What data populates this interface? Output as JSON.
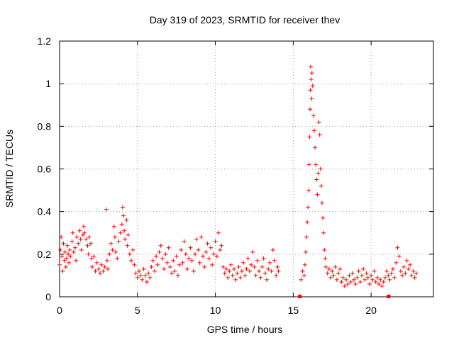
{
  "chart_data": {
    "type": "scatter",
    "title": "Day 319 of 2023, SRMTID for receiver thev",
    "xlabel": "GPS time / hours",
    "ylabel": "SRMTID / TECUs",
    "xlim": [
      0,
      24
    ],
    "ylim": [
      0,
      1.2
    ],
    "xticks": [
      0,
      5,
      10,
      15,
      20
    ],
    "xtick_labels": [
      "0",
      "5",
      "10",
      "15",
      "20"
    ],
    "yticks": [
      0,
      0.2,
      0.4,
      0.6,
      0.8,
      1.0,
      1.2
    ],
    "ytick_labels": [
      "0",
      "0.2",
      "0.4",
      "0.6",
      "0.8",
      "1",
      "1.2"
    ],
    "grid": true,
    "marker": "+",
    "color": "#ff0000",
    "series": [
      {
        "name": "SRMTID",
        "points": [
          [
            0.0,
            0.15
          ],
          [
            0.05,
            0.22
          ],
          [
            0.1,
            0.28
          ],
          [
            0.15,
            0.19
          ],
          [
            0.2,
            0.12
          ],
          [
            0.25,
            0.25
          ],
          [
            0.3,
            0.17
          ],
          [
            0.35,
            0.21
          ],
          [
            0.4,
            0.14
          ],
          [
            0.45,
            0.18
          ],
          [
            0.5,
            0.24
          ],
          [
            0.55,
            0.2
          ],
          [
            0.6,
            0.16
          ],
          [
            0.65,
            0.22
          ],
          [
            0.7,
            0.19
          ],
          [
            0.8,
            0.26
          ],
          [
            0.85,
            0.3
          ],
          [
            0.9,
            0.21
          ],
          [
            1.0,
            0.23
          ],
          [
            1.05,
            0.17
          ],
          [
            1.1,
            0.28
          ],
          [
            1.2,
            0.25
          ],
          [
            1.3,
            0.31
          ],
          [
            1.35,
            0.27
          ],
          [
            1.4,
            0.22
          ],
          [
            1.5,
            0.29
          ],
          [
            1.55,
            0.33
          ],
          [
            1.6,
            0.3
          ],
          [
            1.7,
            0.27
          ],
          [
            1.8,
            0.24
          ],
          [
            1.85,
            0.2
          ],
          [
            1.9,
            0.28
          ],
          [
            2.0,
            0.25
          ],
          [
            2.05,
            0.18
          ],
          [
            2.1,
            0.14
          ],
          [
            2.2,
            0.19
          ],
          [
            2.3,
            0.12
          ],
          [
            2.4,
            0.16
          ],
          [
            2.5,
            0.13
          ],
          [
            2.6,
            0.11
          ],
          [
            2.7,
            0.15
          ],
          [
            2.8,
            0.12
          ],
          [
            2.9,
            0.14
          ],
          [
            3.0,
            0.41
          ],
          [
            3.05,
            0.17
          ],
          [
            3.1,
            0.13
          ],
          [
            3.2,
            0.2
          ],
          [
            3.3,
            0.25
          ],
          [
            3.4,
            0.22
          ],
          [
            3.5,
            0.33
          ],
          [
            3.55,
            0.28
          ],
          [
            3.6,
            0.21
          ],
          [
            3.7,
            0.18
          ],
          [
            3.8,
            0.26
          ],
          [
            3.9,
            0.3
          ],
          [
            4.0,
            0.34
          ],
          [
            4.05,
            0.42
          ],
          [
            4.1,
            0.38
          ],
          [
            4.15,
            0.31
          ],
          [
            4.2,
            0.27
          ],
          [
            4.3,
            0.36
          ],
          [
            4.35,
            0.24
          ],
          [
            4.4,
            0.29
          ],
          [
            4.5,
            0.2
          ],
          [
            4.6,
            0.17
          ],
          [
            4.7,
            0.22
          ],
          [
            4.8,
            0.15
          ],
          [
            4.9,
            0.11
          ],
          [
            5.0,
            0.09
          ],
          [
            5.1,
            0.12
          ],
          [
            5.2,
            0.1
          ],
          [
            5.3,
            0.08
          ],
          [
            5.4,
            0.13
          ],
          [
            5.5,
            0.1
          ],
          [
            5.6,
            0.07
          ],
          [
            5.7,
            0.11
          ],
          [
            5.8,
            0.09
          ],
          [
            5.9,
            0.14
          ],
          [
            6.0,
            0.17
          ],
          [
            6.1,
            0.12
          ],
          [
            6.2,
            0.19
          ],
          [
            6.3,
            0.15
          ],
          [
            6.4,
            0.21
          ],
          [
            6.5,
            0.24
          ],
          [
            6.6,
            0.18
          ],
          [
            6.7,
            0.13
          ],
          [
            6.8,
            0.2
          ],
          [
            6.9,
            0.16
          ],
          [
            7.0,
            0.23
          ],
          [
            7.1,
            0.14
          ],
          [
            7.2,
            0.11
          ],
          [
            7.3,
            0.17
          ],
          [
            7.4,
            0.12
          ],
          [
            7.5,
            0.19
          ],
          [
            7.6,
            0.1
          ],
          [
            7.7,
            0.15
          ],
          [
            7.8,
            0.22
          ],
          [
            7.9,
            0.16
          ],
          [
            8.0,
            0.26
          ],
          [
            8.1,
            0.2
          ],
          [
            8.2,
            0.13
          ],
          [
            8.3,
            0.18
          ],
          [
            8.4,
            0.23
          ],
          [
            8.5,
            0.17
          ],
          [
            8.6,
            0.12
          ],
          [
            8.7,
            0.2
          ],
          [
            8.8,
            0.27
          ],
          [
            8.9,
            0.22
          ],
          [
            9.0,
            0.16
          ],
          [
            9.1,
            0.28
          ],
          [
            9.2,
            0.19
          ],
          [
            9.3,
            0.14
          ],
          [
            9.4,
            0.21
          ],
          [
            9.5,
            0.25
          ],
          [
            9.6,
            0.18
          ],
          [
            9.7,
            0.23
          ],
          [
            9.8,
            0.15
          ],
          [
            9.9,
            0.2
          ],
          [
            10.0,
            0.26
          ],
          [
            10.1,
            0.19
          ],
          [
            10.2,
            0.3
          ],
          [
            10.3,
            0.22
          ],
          [
            10.4,
            0.24
          ],
          [
            10.5,
            0.14
          ],
          [
            10.6,
            0.11
          ],
          [
            10.7,
            0.13
          ],
          [
            10.8,
            0.09
          ],
          [
            10.9,
            0.12
          ],
          [
            11.0,
            0.15
          ],
          [
            11.1,
            0.1
          ],
          [
            11.2,
            0.13
          ],
          [
            11.3,
            0.08
          ],
          [
            11.4,
            0.11
          ],
          [
            11.5,
            0.14
          ],
          [
            11.6,
            0.09
          ],
          [
            11.7,
            0.12
          ],
          [
            11.8,
            0.16
          ],
          [
            11.9,
            0.1
          ],
          [
            12.0,
            0.13
          ],
          [
            12.1,
            0.18
          ],
          [
            12.2,
            0.12
          ],
          [
            12.3,
            0.15
          ],
          [
            12.4,
            0.21
          ],
          [
            12.5,
            0.14
          ],
          [
            12.6,
            0.1
          ],
          [
            12.7,
            0.17
          ],
          [
            12.8,
            0.12
          ],
          [
            12.9,
            0.09
          ],
          [
            13.0,
            0.14
          ],
          [
            13.1,
            0.18
          ],
          [
            13.2,
            0.11
          ],
          [
            13.3,
            0.08
          ],
          [
            13.4,
            0.13
          ],
          [
            13.5,
            0.16
          ],
          [
            13.6,
            0.12
          ],
          [
            13.7,
            0.22
          ],
          [
            13.8,
            0.17
          ],
          [
            13.9,
            0.1
          ],
          [
            14.0,
            0.14
          ],
          [
            14.05,
            0.12
          ],
          [
            15.5,
            0.08
          ],
          [
            15.6,
            0.12
          ],
          [
            15.7,
            0.1
          ],
          [
            15.75,
            0.15
          ],
          [
            15.8,
            0.21
          ],
          [
            15.85,
            0.28
          ],
          [
            15.9,
            0.35
          ],
          [
            15.95,
            0.42
          ],
          [
            16.0,
            0.5
          ],
          [
            16.02,
            0.62
          ],
          [
            16.05,
            0.75
          ],
          [
            16.08,
            0.88
          ],
          [
            16.1,
            0.97
          ],
          [
            16.12,
            1.08
          ],
          [
            16.15,
            1.02
          ],
          [
            16.18,
            0.93
          ],
          [
            16.2,
            1.05
          ],
          [
            16.25,
            0.99
          ],
          [
            16.3,
            0.85
          ],
          [
            16.35,
            0.78
          ],
          [
            16.4,
            0.7
          ],
          [
            16.45,
            0.62
          ],
          [
            16.5,
            0.55
          ],
          [
            16.55,
            0.48
          ],
          [
            16.6,
            0.58
          ],
          [
            16.65,
            0.82
          ],
          [
            16.7,
            0.76
          ],
          [
            16.75,
            0.6
          ],
          [
            16.8,
            0.52
          ],
          [
            16.85,
            0.44
          ],
          [
            16.9,
            0.37
          ],
          [
            16.95,
            0.3
          ],
          [
            17.0,
            0.22
          ],
          [
            17.05,
            0.18
          ],
          [
            17.1,
            0.14
          ],
          [
            17.2,
            0.11
          ],
          [
            17.3,
            0.13
          ],
          [
            17.4,
            0.09
          ],
          [
            17.5,
            0.12
          ],
          [
            17.6,
            0.1
          ],
          [
            17.7,
            0.14
          ],
          [
            17.8,
            0.08
          ],
          [
            17.9,
            0.11
          ],
          [
            18.0,
            0.13
          ],
          [
            18.1,
            0.07
          ],
          [
            18.2,
            0.09
          ],
          [
            18.3,
            0.05
          ],
          [
            18.4,
            0.08
          ],
          [
            18.5,
            0.06
          ],
          [
            18.6,
            0.1
          ],
          [
            18.7,
            0.07
          ],
          [
            18.8,
            0.11
          ],
          [
            18.9,
            0.08
          ],
          [
            19.0,
            0.06
          ],
          [
            19.1,
            0.09
          ],
          [
            19.2,
            0.12
          ],
          [
            19.3,
            0.07
          ],
          [
            19.4,
            0.1
          ],
          [
            19.5,
            0.13
          ],
          [
            19.6,
            0.08
          ],
          [
            19.7,
            0.11
          ],
          [
            19.8,
            0.09
          ],
          [
            19.9,
            0.06
          ],
          [
            20.0,
            0.1
          ],
          [
            20.1,
            0.08
          ],
          [
            20.2,
            0.12
          ],
          [
            20.3,
            0.07
          ],
          [
            20.4,
            0.09
          ],
          [
            20.5,
            0.06
          ],
          [
            20.6,
            0.08
          ],
          [
            20.7,
            0.05
          ],
          [
            20.8,
            0.07
          ],
          [
            20.9,
            0.09
          ],
          [
            21.0,
            0.12
          ],
          [
            21.1,
            0.1
          ],
          [
            21.2,
            0.08
          ],
          [
            21.3,
            0.11
          ],
          [
            21.4,
            0.13
          ],
          [
            21.5,
            0.09
          ],
          [
            21.6,
            0.16
          ],
          [
            21.7,
            0.23
          ],
          [
            21.8,
            0.19
          ],
          [
            21.9,
            0.12
          ],
          [
            22.0,
            0.1
          ],
          [
            22.1,
            0.14
          ],
          [
            22.2,
            0.11
          ],
          [
            22.3,
            0.17
          ],
          [
            22.4,
            0.13
          ],
          [
            22.5,
            0.15
          ],
          [
            22.6,
            0.1
          ],
          [
            22.7,
            0.12
          ],
          [
            22.8,
            0.09
          ],
          [
            22.9,
            0.11
          ]
        ]
      }
    ],
    "gap_markers": [
      15.4,
      21.1
    ]
  }
}
